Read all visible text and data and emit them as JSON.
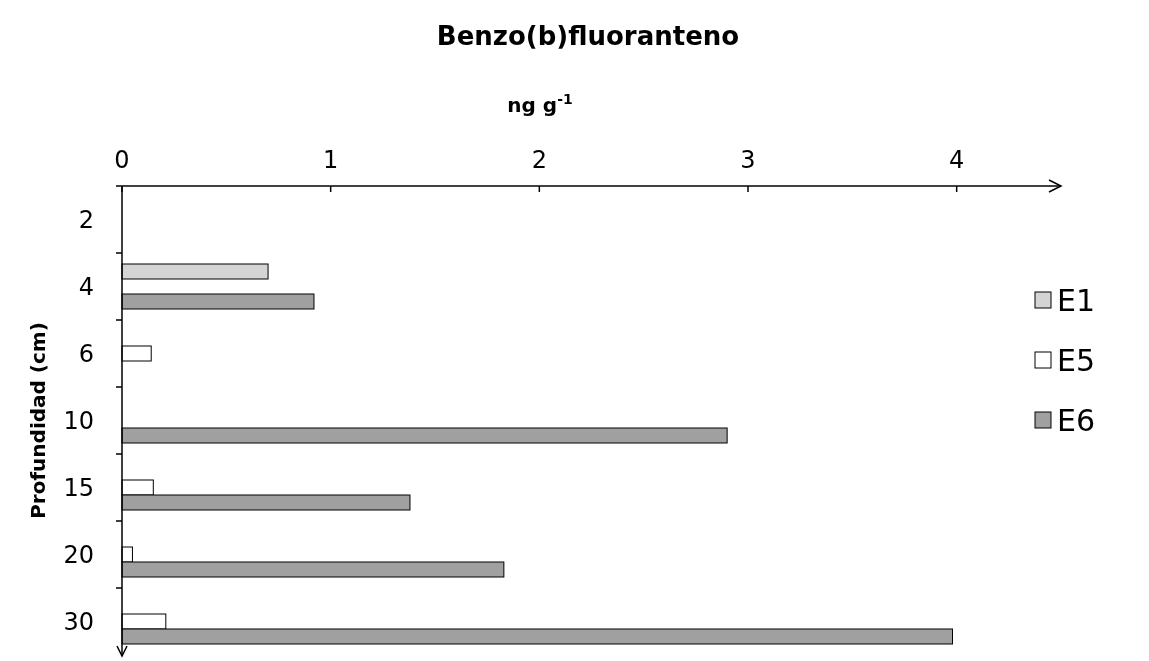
{
  "chart_data": {
    "type": "bar",
    "orientation": "horizontal",
    "title": "Benzo(b)fluoranteno",
    "xlabel": "ng g$^{-1}$",
    "ylabel": "Profundidad (cm)",
    "categories": [
      "2",
      "4",
      "6",
      "10",
      "15",
      "20",
      "30"
    ],
    "series": [
      {
        "name": "E1",
        "color": "#d4d4d4",
        "values": [
          null,
          0.7,
          null,
          null,
          null,
          null,
          null
        ]
      },
      {
        "name": "E5",
        "color": "#ffffff",
        "values": [
          null,
          null,
          0.14,
          null,
          0.15,
          0.05,
          0.21
        ]
      },
      {
        "name": "E6",
        "color": "#a0a0a0",
        "values": [
          null,
          0.92,
          null,
          2.9,
          1.38,
          1.83,
          3.98
        ]
      }
    ],
    "xlim": [
      0,
      4.5
    ],
    "xticks": [
      0,
      1,
      2,
      3,
      4
    ],
    "legend": "right",
    "grid": false
  }
}
